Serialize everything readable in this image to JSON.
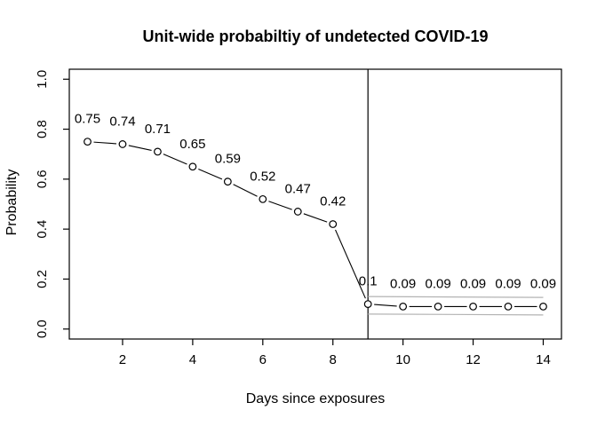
{
  "chart_data": {
    "type": "line",
    "title": "Unit-wide probabiltiy of undetected COVID-19",
    "xlabel": "Days since exposures",
    "ylabel": "Probability",
    "x": [
      1,
      2,
      3,
      4,
      5,
      6,
      7,
      8,
      9,
      10,
      11,
      12,
      13,
      14
    ],
    "y": [
      0.75,
      0.74,
      0.71,
      0.65,
      0.59,
      0.52,
      0.47,
      0.42,
      0.1,
      0.09,
      0.09,
      0.09,
      0.09,
      0.09
    ],
    "point_labels": [
      "0.75",
      "0.74",
      "0.71",
      "0.65",
      "0.59",
      "0.52",
      "0.47",
      "0.42",
      "0.1",
      "0.09",
      "0.09",
      "0.09",
      "0.09",
      "0.09"
    ],
    "x_ticks": [
      2,
      4,
      6,
      8,
      10,
      12,
      14
    ],
    "y_ticks": [
      "0.0",
      "0.2",
      "0.4",
      "0.6",
      "0.8",
      "1.0"
    ],
    "xlim": [
      0.48,
      14.52
    ],
    "ylim": [
      -0.04,
      1.04
    ],
    "vline_x": 9,
    "ci_band": {
      "x_start": 9,
      "x_end": 14,
      "upper": 0.13,
      "lower": 0.06
    },
    "marker": "open-circle",
    "grid": false,
    "legend": "none",
    "colors": {
      "line": "#000000",
      "marker_stroke": "#000000",
      "marker_fill": "#ffffff",
      "ci_line": "#b3b3b3",
      "box": "#000000",
      "background": "#ffffff"
    }
  }
}
